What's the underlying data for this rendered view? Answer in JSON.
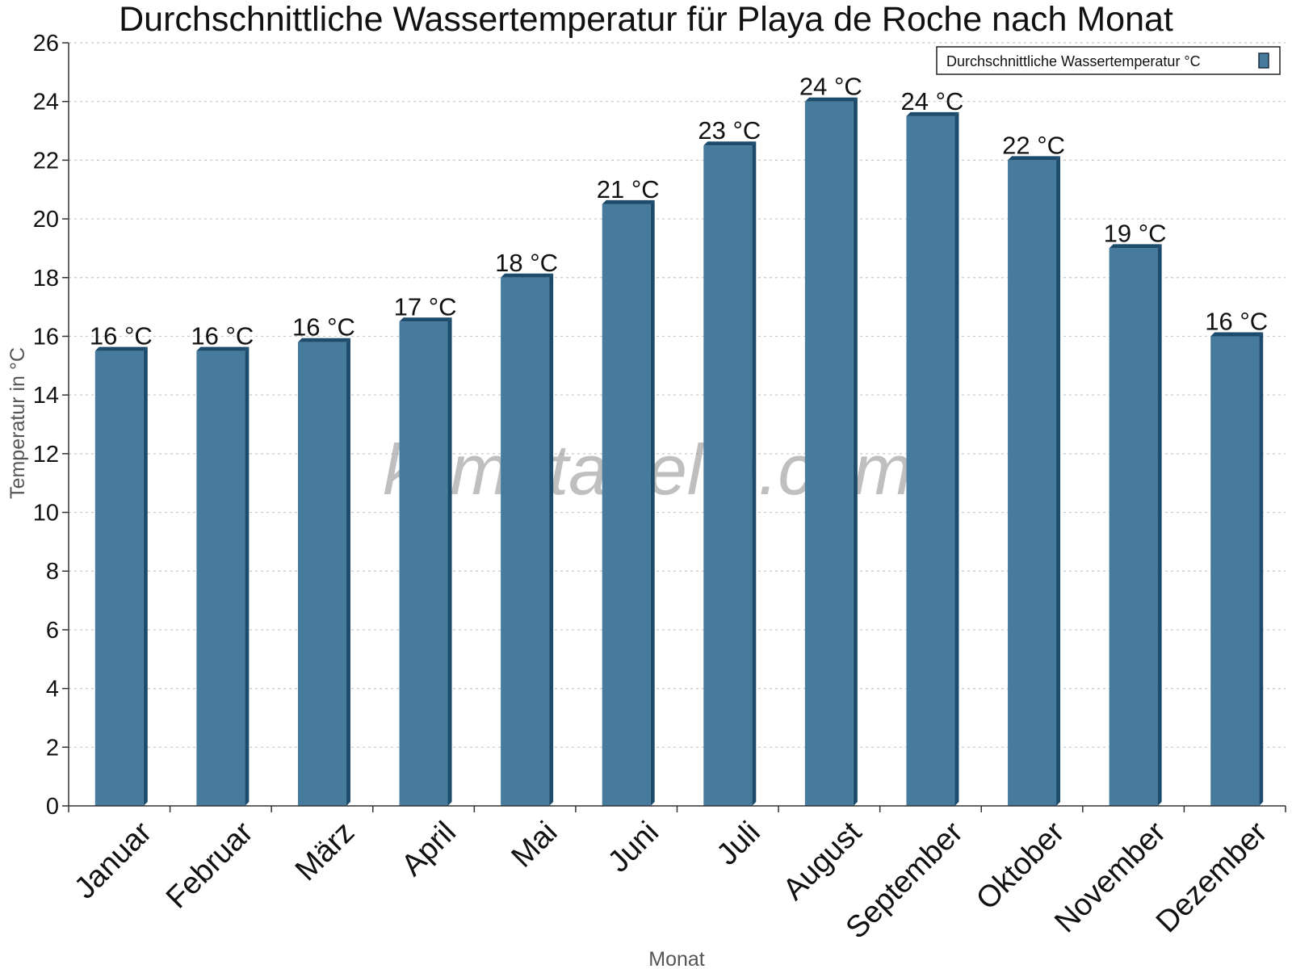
{
  "chart_data": {
    "type": "bar",
    "title": "Durchschnittliche Wassertemperatur für Playa de Roche nach Monat",
    "xlabel": "Monat",
    "ylabel": "Temperatur in °C",
    "categories": [
      "Januar",
      "Februar",
      "März",
      "April",
      "Mai",
      "Juni",
      "Juli",
      "August",
      "September",
      "Oktober",
      "November",
      "Dezember"
    ],
    "series": [
      {
        "name": "Durchschnittliche Wassertemperatur °C",
        "values": [
          15.5,
          15.5,
          15.8,
          16.5,
          18.0,
          20.5,
          22.5,
          24.0,
          23.5,
          22.0,
          19.0,
          16.0
        ],
        "labels": [
          "16 °C",
          "16 °C",
          "16 °C",
          "17 °C",
          "18 °C",
          "21 °C",
          "23 °C",
          "24 °C",
          "24 °C",
          "22 °C",
          "19 °C",
          "16 °C"
        ],
        "color": "#467b9e",
        "shade_color": "#1c4b6b"
      }
    ],
    "ylim": [
      0,
      26
    ],
    "yticks": [
      0,
      2,
      4,
      6,
      8,
      10,
      12,
      14,
      16,
      18,
      20,
      22,
      24,
      26
    ],
    "grid": true,
    "legend_position": "top-right",
    "watermark": "klimatabelle.com"
  }
}
